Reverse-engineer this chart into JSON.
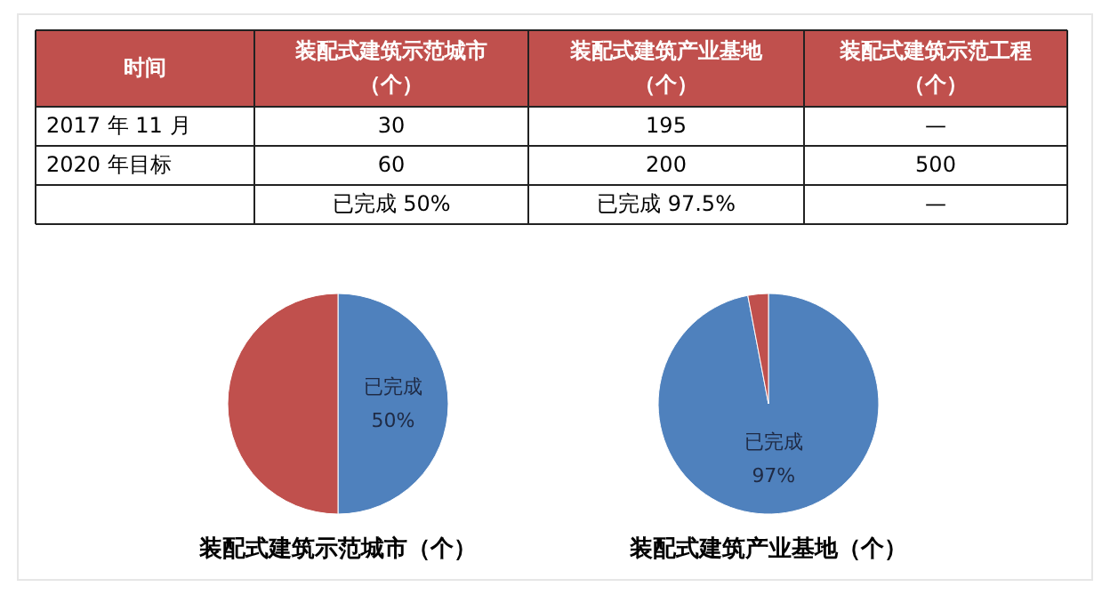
{
  "chart_data": [
    {
      "type": "other",
      "color": "#c0504d",
      "categories": [
        "时间",
        "装配式建筑示范城市（个）",
        "装配式建筑产业基地（个）",
        "装配式建筑示范工程（个）"
      ],
      "y_categories": [
        "2017 年 11 月",
        "2020 年目标",
        null
      ],
      "cell_labels": [
        [
          "30",
          "195",
          "—"
        ],
        [
          "60",
          "200",
          "500"
        ],
        [
          "已完成 50%",
          "已完成 97.5%",
          "—"
        ]
      ]
    },
    {
      "type": "pie",
      "title": "装配式建筑示范城市（个）",
      "categories": [
        "已完成",
        null
      ],
      "values": [
        50,
        50
      ],
      "colors": [
        "#4f81bd",
        "#c0504d"
      ],
      "value_labels": [
        "50%",
        null
      ]
    },
    {
      "type": "pie",
      "title": "装配式建筑产业基地（个）",
      "categories": [
        "已完成",
        null
      ],
      "values": [
        97,
        3
      ],
      "colors": [
        "#4f81bd",
        "#c0504d"
      ],
      "value_labels": [
        "97%",
        null
      ]
    }
  ]
}
